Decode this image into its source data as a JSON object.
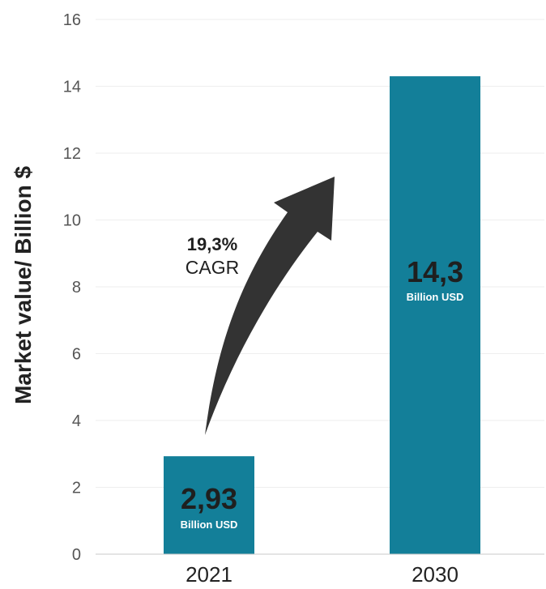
{
  "chart_data": {
    "type": "bar",
    "categories": [
      "2021",
      "2030"
    ],
    "values": [
      2.93,
      14.3
    ],
    "value_labels": [
      "2,93",
      "14,3"
    ],
    "value_unit_label": "Billion USD",
    "ylabel": "Market value/ Billion $",
    "ylim": [
      0,
      16
    ],
    "yticks": [
      0,
      2,
      4,
      6,
      8,
      10,
      12,
      14,
      16
    ],
    "grid": true,
    "legend": "none",
    "annotation": {
      "line1": "19,3%",
      "line2": "CAGR"
    },
    "colors": {
      "bar": "#137f99",
      "arrow": "#333333",
      "gridline": "#eeeeee",
      "axis": "#c8c8c8",
      "tick_label": "#555555",
      "ylabel": "#222222",
      "bar_label": "#1f1f1f",
      "bar_sublabel": "#ffffff"
    }
  }
}
